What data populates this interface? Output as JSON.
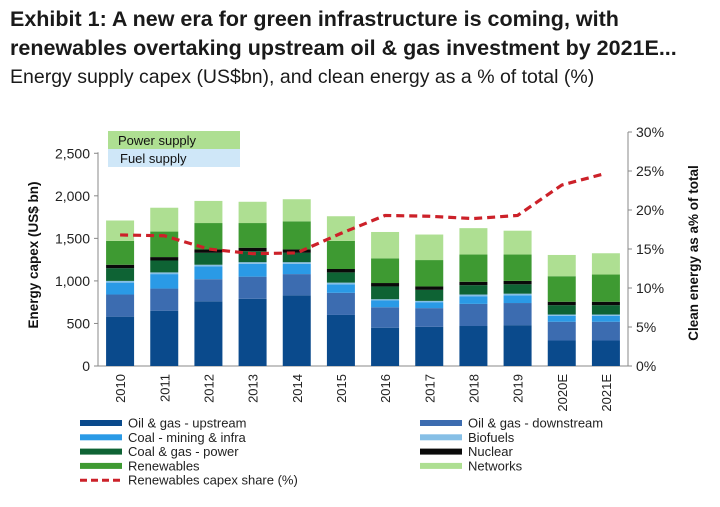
{
  "header": {
    "title_line1": "Exhibit 1: A new era for green infrastructure is coming, with",
    "title_line2": "renewables overtaking upstream oil & gas investment by 2021E...",
    "subtitle": "Energy supply capex (US$bn), and clean energy as a % of total (%)"
  },
  "colors": {
    "oil_gas_upstream": "#0a4a8c",
    "oil_gas_downstream": "#3c6cb0",
    "coal_mining_infra": "#2a9ae6",
    "biofuels": "#86bfe6",
    "coal_gas_power": "#0e6334",
    "nuclear": "#0a0a0a",
    "renewables": "#3e9a32",
    "networks": "#aedf92",
    "share_line": "#cc2129",
    "axis": "#888888"
  },
  "chart_data": {
    "type": "bar",
    "stacked": true,
    "categories": [
      "2010",
      "2011",
      "2012",
      "2013",
      "2014",
      "2015",
      "2016",
      "2017",
      "2018",
      "2019",
      "2020E",
      "2021E"
    ],
    "ylabel": "Energy capex (US$ bn)",
    "ylim": [
      0,
      2750
    ],
    "yticks": [
      "0",
      "500",
      "1,000",
      "1,500",
      "2,000",
      "2,500"
    ],
    "y2label": "Clean energy as a% of total",
    "y2lim": [
      0,
      30
    ],
    "y2ticks": [
      "0%",
      "5%",
      "10%",
      "15%",
      "20%",
      "25%",
      "30%"
    ],
    "grid": false,
    "inset_labels": [
      "Power supply",
      "Fuel supply"
    ],
    "series": [
      {
        "name": "Oil & gas - upstream",
        "key": "oil_gas_upstream",
        "values": [
          580,
          650,
          760,
          790,
          830,
          600,
          450,
          460,
          470,
          480,
          300,
          300
        ]
      },
      {
        "name": "Oil & gas - downstream",
        "key": "oil_gas_downstream",
        "values": [
          260,
          260,
          260,
          260,
          250,
          260,
          240,
          220,
          260,
          260,
          220,
          220
        ]
      },
      {
        "name": "Coal - mining & infra",
        "key": "coal_mining_infra",
        "values": [
          140,
          170,
          150,
          150,
          120,
          100,
          80,
          70,
          90,
          90,
          70,
          70
        ]
      },
      {
        "name": "Biofuels",
        "key": "biofuels",
        "values": [
          20,
          20,
          20,
          20,
          20,
          20,
          15,
          15,
          20,
          20,
          15,
          15
        ]
      },
      {
        "name": "Coal & gas - power",
        "key": "coal_gas_power",
        "values": [
          150,
          140,
          140,
          130,
          110,
          120,
          150,
          130,
          110,
          110,
          110,
          110
        ]
      },
      {
        "name": "Nuclear",
        "key": "nuclear",
        "values": [
          40,
          40,
          40,
          40,
          40,
          40,
          40,
          40,
          40,
          40,
          40,
          40
        ]
      },
      {
        "name": "Renewables",
        "key": "renewables",
        "values": [
          280,
          300,
          310,
          290,
          330,
          330,
          290,
          310,
          320,
          310,
          300,
          320
        ]
      },
      {
        "name": "Networks",
        "key": "networks",
        "values": [
          240,
          280,
          260,
          250,
          260,
          290,
          310,
          300,
          310,
          280,
          250,
          250
        ]
      }
    ],
    "line_series": {
      "name": "Renewables capex share (%)",
      "axis": "right",
      "style": "dashed",
      "values": [
        16.8,
        16.7,
        15.0,
        14.4,
        14.5,
        17.0,
        19.3,
        19.2,
        18.9,
        19.3,
        23.2,
        24.7
      ]
    },
    "legend": {
      "placement": "bottom",
      "left": [
        "Oil & gas - upstream",
        "Coal - mining & infra",
        "Coal & gas - power",
        "Renewables",
        "Renewables capex share (%)"
      ],
      "right": [
        "Oil & gas - downstream",
        "Biofuels",
        "Nuclear",
        "Networks"
      ]
    }
  }
}
